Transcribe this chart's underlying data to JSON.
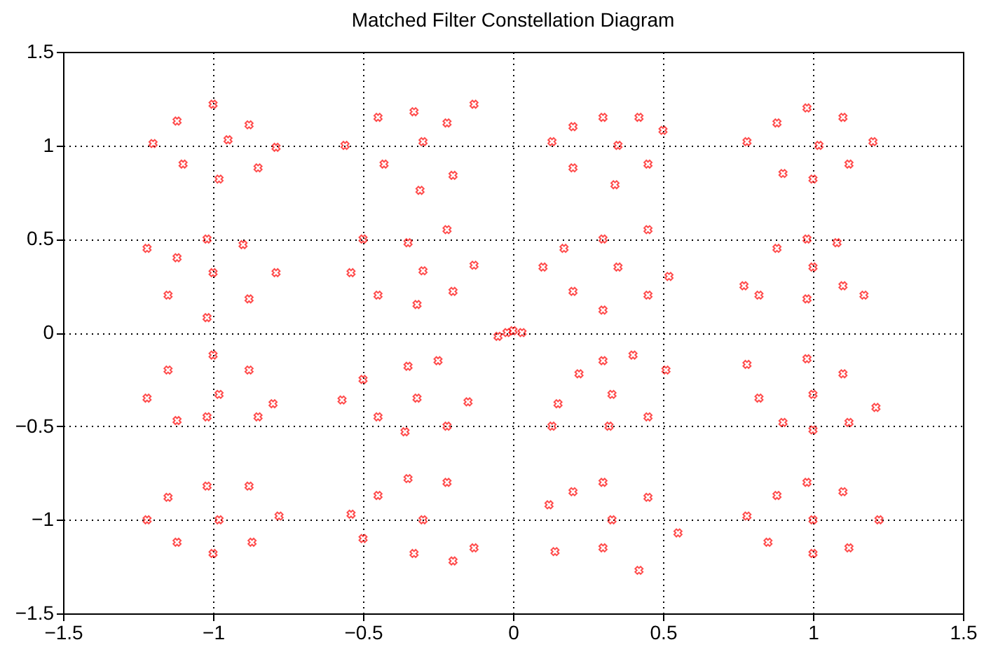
{
  "chart_data": {
    "type": "scatter",
    "title": "Matched Filter Constellation Diagram",
    "x": [
      -1.2,
      -1.12,
      -1.1,
      -1.0,
      -0.98,
      -0.95,
      -0.88,
      -0.85,
      -0.79,
      -0.56,
      -0.45,
      -0.43,
      -0.33,
      -0.31,
      -0.3,
      -0.22,
      -0.2,
      -0.13,
      0.13,
      0.2,
      0.2,
      0.3,
      0.34,
      0.35,
      0.42,
      0.45,
      0.5,
      0.78,
      0.88,
      0.9,
      0.98,
      1.0,
      1.02,
      1.1,
      1.12,
      1.2,
      -1.22,
      -1.15,
      -1.12,
      -1.02,
      -1.02,
      -1.0,
      -0.9,
      -0.88,
      -0.79,
      -0.54,
      -0.5,
      -0.45,
      -0.35,
      -0.32,
      -0.3,
      -0.22,
      -0.2,
      -0.13,
      0.1,
      0.17,
      0.2,
      0.3,
      0.3,
      0.35,
      0.45,
      0.45,
      0.52,
      0.77,
      0.82,
      0.88,
      0.98,
      0.98,
      1.0,
      1.08,
      1.1,
      1.17,
      -1.22,
      -1.15,
      -1.12,
      -1.0,
      -1.02,
      -0.98,
      -0.88,
      -0.85,
      -0.8,
      -0.57,
      -0.5,
      -0.45,
      -0.35,
      -0.36,
      -0.32,
      -0.25,
      -0.22,
      -0.15,
      0.13,
      0.15,
      0.22,
      0.3,
      0.32,
      0.33,
      0.4,
      0.45,
      0.51,
      0.78,
      0.82,
      0.9,
      0.98,
      1.0,
      1.0,
      1.1,
      1.12,
      1.21,
      -1.22,
      -1.15,
      -1.12,
      -1.02,
      -1.0,
      -0.98,
      -0.88,
      -0.87,
      -0.78,
      -0.54,
      -0.5,
      -0.45,
      -0.35,
      -0.33,
      -0.3,
      -0.22,
      -0.2,
      -0.13,
      0.12,
      0.14,
      0.2,
      0.3,
      0.3,
      0.33,
      0.42,
      0.45,
      0.55,
      0.78,
      0.85,
      0.88,
      0.98,
      1.0,
      1.0,
      1.1,
      1.12,
      1.22,
      -0.05,
      -0.02,
      0.0,
      0.03
    ],
    "values": [
      1.01,
      1.13,
      0.9,
      1.22,
      0.82,
      1.03,
      1.11,
      0.88,
      0.99,
      1.0,
      1.15,
      0.9,
      1.18,
      0.76,
      1.02,
      1.12,
      0.84,
      1.22,
      1.02,
      1.1,
      0.88,
      1.15,
      0.79,
      1.0,
      1.15,
      0.9,
      1.08,
      1.02,
      1.12,
      0.85,
      1.2,
      0.82,
      1.0,
      1.15,
      0.9,
      1.02,
      0.45,
      0.2,
      0.4,
      0.5,
      0.08,
      0.32,
      0.47,
      0.18,
      0.32,
      0.32,
      0.5,
      0.2,
      0.48,
      0.15,
      0.33,
      0.55,
      0.22,
      0.36,
      0.35,
      0.45,
      0.22,
      0.5,
      0.12,
      0.35,
      0.55,
      0.2,
      0.3,
      0.25,
      0.2,
      0.45,
      0.5,
      0.18,
      0.35,
      0.48,
      0.25,
      0.2,
      -0.35,
      -0.2,
      -0.47,
      -0.12,
      -0.45,
      -0.33,
      -0.2,
      -0.45,
      -0.38,
      -0.36,
      -0.25,
      -0.45,
      -0.18,
      -0.53,
      -0.35,
      -0.15,
      -0.5,
      -0.37,
      -0.5,
      -0.38,
      -0.22,
      -0.15,
      -0.5,
      -0.33,
      -0.12,
      -0.45,
      -0.2,
      -0.17,
      -0.35,
      -0.48,
      -0.14,
      -0.52,
      -0.33,
      -0.22,
      -0.48,
      -0.4,
      -1.0,
      -0.88,
      -1.12,
      -0.82,
      -1.18,
      -1.0,
      -0.82,
      -1.12,
      -0.98,
      -0.97,
      -1.1,
      -0.87,
      -0.78,
      -1.18,
      -1.0,
      -0.8,
      -1.22,
      -1.15,
      -0.92,
      -1.17,
      -0.85,
      -0.8,
      -1.15,
      -1.0,
      -1.27,
      -0.88,
      -1.07,
      -0.98,
      -1.12,
      -0.87,
      -0.8,
      -1.18,
      -1.0,
      -0.85,
      -1.15,
      -1.0,
      -0.02,
      0.0,
      0.01,
      0.0
    ],
    "color": "#ff0000",
    "marker": "cross",
    "xlim": [
      -1.5,
      1.5
    ],
    "xticks": [
      -1.5,
      -1,
      -0.5,
      0,
      0.5,
      1,
      1.5
    ],
    "ylim": [
      -1.5,
      1.5
    ],
    "yticks": [
      -1.5,
      -1,
      -0.5,
      0,
      0.5,
      1,
      1.5
    ],
    "grid": true
  }
}
